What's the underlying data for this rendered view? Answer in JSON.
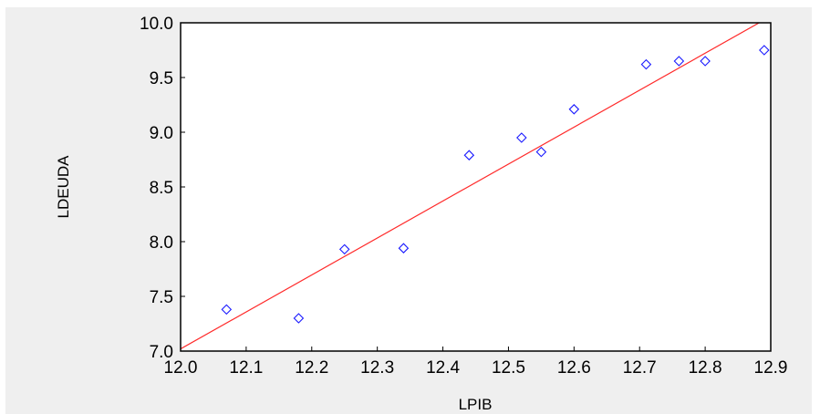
{
  "chart_data": {
    "type": "scatter",
    "title": "",
    "xlabel": "LPIB",
    "ylabel": "LDEUDA",
    "xlim": [
      12.0,
      12.9
    ],
    "ylim": [
      7.0,
      10.0
    ],
    "x_ticks": [
      "12.0",
      "12.1",
      "12.2",
      "12.3",
      "12.4",
      "12.5",
      "12.6",
      "12.7",
      "12.8",
      "12.9"
    ],
    "y_ticks": [
      "7.0",
      "7.5",
      "8.0",
      "8.5",
      "9.0",
      "9.5",
      "10.0"
    ],
    "grid": false,
    "series": [
      {
        "marker": "diamond-open",
        "color": "#1a1aff",
        "points": [
          {
            "x": 12.07,
            "y": 7.38
          },
          {
            "x": 12.18,
            "y": 7.3
          },
          {
            "x": 12.25,
            "y": 7.93
          },
          {
            "x": 12.34,
            "y": 7.94
          },
          {
            "x": 12.44,
            "y": 8.79
          },
          {
            "x": 12.52,
            "y": 8.95
          },
          {
            "x": 12.55,
            "y": 8.82
          },
          {
            "x": 12.6,
            "y": 9.21
          },
          {
            "x": 12.71,
            "y": 9.62
          },
          {
            "x": 12.76,
            "y": 9.65
          },
          {
            "x": 12.8,
            "y": 9.65
          },
          {
            "x": 12.89,
            "y": 9.75
          }
        ]
      }
    ],
    "fit_line": {
      "color": "#ff2a2a",
      "x": [
        12.0,
        12.9
      ],
      "y": [
        7.02,
        10.06
      ]
    }
  }
}
